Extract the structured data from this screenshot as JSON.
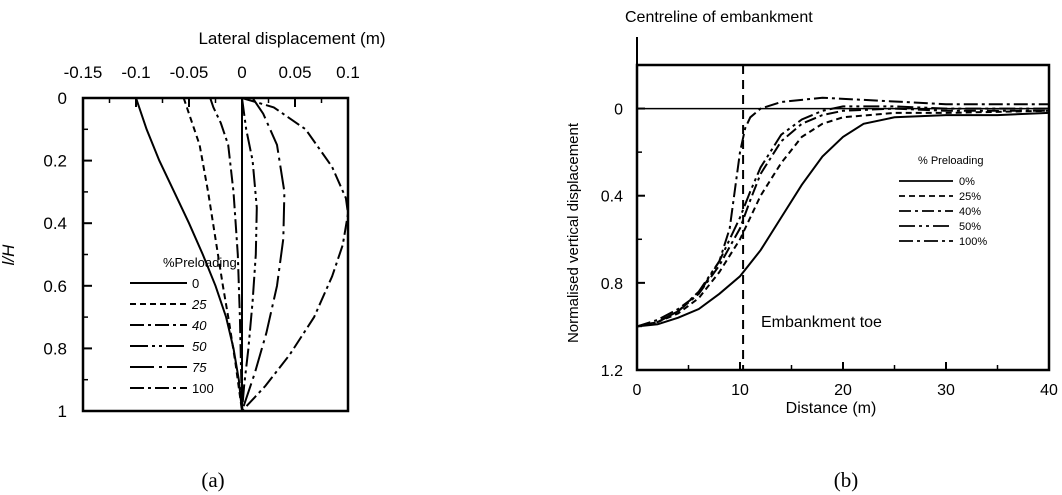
{
  "chart_data": [
    {
      "type": "line",
      "panel_label": "(a)",
      "xlabel": "Lateral displacement (m)",
      "ylabel": "l/H",
      "xlim": [
        -0.15,
        0.1
      ],
      "ylim": [
        0,
        1
      ],
      "y_inverted": true,
      "x_axis_position": "top",
      "xticks": [
        "-0.15",
        "-0.1",
        "-0.05",
        "0",
        "0.05",
        "0.1"
      ],
      "yticks": [
        "0",
        "0.2",
        "0.4",
        "0.6",
        "0.8",
        "1"
      ],
      "grid": false,
      "legend_title": "%Preloading",
      "legend_position": "bottom-left",
      "series": [
        {
          "name": "0",
          "dash": "",
          "points": [
            [
              -0.1,
              0
            ],
            [
              -0.097,
              0.03
            ],
            [
              -0.09,
              0.1
            ],
            [
              -0.078,
              0.2
            ],
            [
              -0.064,
              0.3
            ],
            [
              -0.05,
              0.4
            ],
            [
              -0.037,
              0.5
            ],
            [
              -0.025,
              0.6
            ],
            [
              -0.015,
              0.7
            ],
            [
              -0.008,
              0.8
            ],
            [
              -0.003,
              0.9
            ],
            [
              0,
              1
            ]
          ]
        },
        {
          "name": "25",
          "dash": "6,4",
          "points": [
            [
              -0.055,
              0
            ],
            [
              -0.05,
              0.05
            ],
            [
              -0.04,
              0.15
            ],
            [
              -0.032,
              0.3
            ],
            [
              -0.025,
              0.45
            ],
            [
              -0.018,
              0.6
            ],
            [
              -0.012,
              0.72
            ],
            [
              -0.006,
              0.85
            ],
            [
              0,
              1
            ]
          ]
        },
        {
          "name": "40",
          "dash": "14,4,3,4",
          "points": [
            [
              -0.03,
              0
            ],
            [
              -0.027,
              0.03
            ],
            [
              -0.02,
              0.08
            ],
            [
              -0.013,
              0.15
            ],
            [
              -0.008,
              0.3
            ],
            [
              -0.004,
              0.5
            ],
            [
              -0.002,
              0.7
            ],
            [
              0,
              1
            ]
          ]
        },
        {
          "name": "50",
          "dash": "18,4,3,4,3,4",
          "points": [
            [
              0,
              0
            ],
            [
              0.004,
              0.1
            ],
            [
              0.01,
              0.2
            ],
            [
              0.014,
              0.35
            ],
            [
              0.013,
              0.5
            ],
            [
              0.01,
              0.65
            ],
            [
              0.006,
              0.8
            ],
            [
              0.002,
              0.92
            ],
            [
              0,
              1
            ]
          ]
        },
        {
          "name": "75",
          "dash": "24,5,3,5",
          "points": [
            [
              0.01,
              0
            ],
            [
              0.02,
              0.05
            ],
            [
              0.033,
              0.15
            ],
            [
              0.04,
              0.3
            ],
            [
              0.039,
              0.45
            ],
            [
              0.033,
              0.6
            ],
            [
              0.023,
              0.75
            ],
            [
              0.012,
              0.88
            ],
            [
              0,
              1
            ]
          ]
        },
        {
          "name": "100",
          "dash": "14,4,3,4",
          "points": [
            [
              0,
              0
            ],
            [
              0.03,
              0.03
            ],
            [
              0.06,
              0.1
            ],
            [
              0.085,
              0.22
            ],
            [
              0.098,
              0.32
            ],
            [
              0.1,
              0.37
            ],
            [
              0.095,
              0.47
            ],
            [
              0.085,
              0.57
            ],
            [
              0.068,
              0.7
            ],
            [
              0.045,
              0.82
            ],
            [
              0.022,
              0.92
            ],
            [
              0,
              1
            ]
          ]
        }
      ]
    },
    {
      "type": "line",
      "panel_label": "(b)",
      "xlabel": "Distance (m)",
      "ylabel": "Normalised vertical displacement",
      "xlim": [
        0,
        40
      ],
      "ylim": [
        -0.2,
        1.2
      ],
      "y_inverted": true,
      "xticks": [
        "0",
        "10",
        "20",
        "30",
        "40"
      ],
      "yticks": [
        "0",
        "0.4",
        "0.8",
        "1.2"
      ],
      "grid": false,
      "annotations": {
        "centreline": "Centreline of embankment",
        "toe": "Embankment toe",
        "toe_x": 10.3
      },
      "legend_title": "% Preloading",
      "legend_position": "right",
      "series": [
        {
          "name": "0%",
          "dash": "",
          "points": [
            [
              0,
              1.0
            ],
            [
              2,
              0.99
            ],
            [
              4,
              0.96
            ],
            [
              6,
              0.92
            ],
            [
              8,
              0.85
            ],
            [
              10,
              0.77
            ],
            [
              12,
              0.65
            ],
            [
              14,
              0.5
            ],
            [
              16,
              0.35
            ],
            [
              18,
              0.22
            ],
            [
              20,
              0.13
            ],
            [
              22,
              0.07
            ],
            [
              25,
              0.04
            ],
            [
              30,
              0.03
            ],
            [
              35,
              0.03
            ],
            [
              40,
              0.02
            ]
          ]
        },
        {
          "name": "25%",
          "dash": "6,4",
          "points": [
            [
              0,
              1.0
            ],
            [
              2,
              0.98
            ],
            [
              4,
              0.94
            ],
            [
              6,
              0.87
            ],
            [
              8,
              0.75
            ],
            [
              10,
              0.6
            ],
            [
              11,
              0.5
            ],
            [
              12,
              0.4
            ],
            [
              14,
              0.25
            ],
            [
              16,
              0.13
            ],
            [
              18,
              0.07
            ],
            [
              20,
              0.04
            ],
            [
              25,
              0.02
            ],
            [
              30,
              0.02
            ],
            [
              40,
              0.01
            ]
          ]
        },
        {
          "name": "40%",
          "dash": "12,4,3,4",
          "points": [
            [
              0,
              1.0
            ],
            [
              2,
              0.98
            ],
            [
              4,
              0.93
            ],
            [
              6,
              0.85
            ],
            [
              8,
              0.72
            ],
            [
              10,
              0.55
            ],
            [
              11,
              0.42
            ],
            [
              12,
              0.3
            ],
            [
              14,
              0.15
            ],
            [
              16,
              0.07
            ],
            [
              18,
              0.03
            ],
            [
              20,
              0.01
            ],
            [
              25,
              0.0
            ],
            [
              30,
              0.01
            ],
            [
              40,
              0.01
            ]
          ]
        },
        {
          "name": "50%",
          "dash": "16,4,3,4,3,4",
          "points": [
            [
              0,
              1.0
            ],
            [
              2,
              0.98
            ],
            [
              4,
              0.93
            ],
            [
              6,
              0.84
            ],
            [
              8,
              0.7
            ],
            [
              10,
              0.5
            ],
            [
              11,
              0.38
            ],
            [
              12,
              0.27
            ],
            [
              14,
              0.12
            ],
            [
              16,
              0.05
            ],
            [
              18,
              0.01
            ],
            [
              20,
              -0.01
            ],
            [
              25,
              -0.01
            ],
            [
              30,
              0.0
            ],
            [
              40,
              0.0
            ]
          ]
        },
        {
          "name": "100%",
          "dash": "14,4,3,4",
          "points": [
            [
              0,
              1.0
            ],
            [
              2,
              0.97
            ],
            [
              4,
              0.92
            ],
            [
              6,
              0.85
            ],
            [
              8,
              0.7
            ],
            [
              9,
              0.55
            ],
            [
              10,
              0.2
            ],
            [
              10.5,
              0.09
            ],
            [
              11,
              0.04
            ],
            [
              12,
              0.0
            ],
            [
              14,
              -0.03
            ],
            [
              18,
              -0.05
            ],
            [
              22,
              -0.04
            ],
            [
              26,
              -0.03
            ],
            [
              30,
              -0.02
            ],
            [
              35,
              -0.02
            ],
            [
              40,
              -0.02
            ]
          ]
        }
      ]
    }
  ]
}
